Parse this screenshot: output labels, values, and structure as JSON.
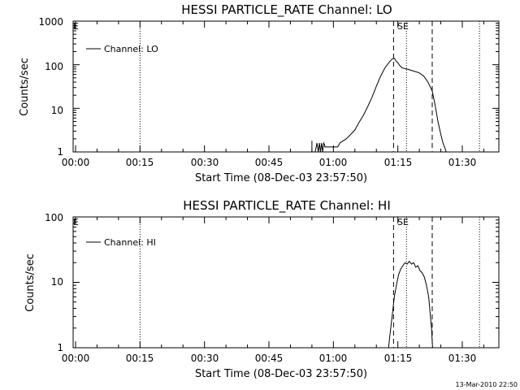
{
  "chart_data": [
    {
      "type": "line",
      "title": "HESSI PARTICLE_RATE Channel: LO",
      "xlabel": "Start Time (08-Dec-03 23:57:50)",
      "ylabel": "Counts/sec",
      "y_scale": "log",
      "ylim": [
        1,
        1000
      ],
      "x_ticks": [
        "00:00",
        "00:15",
        "00:30",
        "00:45",
        "01:00",
        "01:15",
        "01:30"
      ],
      "y_ticks": [
        "1",
        "10",
        "100",
        "1000"
      ],
      "corner_label": "E",
      "legend": {
        "position": "top-left",
        "entries": [
          "Channel: LO"
        ]
      },
      "markers": {
        "dotted": [
          "00:15",
          "01:17",
          "01:34"
        ],
        "dashed": [
          "01:14",
          "01:23"
        ],
        "label": "SE",
        "label_at": "01:15"
      },
      "series": [
        {
          "name": "Channel: LO",
          "x": [
            "00:55:00",
            "00:55:00",
            "00:55:45",
            "00:56:10",
            "00:56:30",
            "00:56:45",
            "00:57:00",
            "00:57:15",
            "00:57:30",
            "00:57:45",
            "00:58:00",
            "00:58:00",
            "01:01:00",
            "01:01:30",
            "01:03:00",
            "01:04:00",
            "01:05:00",
            "01:06:00",
            "01:07:00",
            "01:08:00",
            "01:09:00",
            "01:10:00",
            "01:11:00",
            "01:12:00",
            "01:13:00",
            "01:13:40",
            "01:14:10",
            "01:14:30",
            "01:15:00",
            "01:15:30",
            "01:16:00",
            "01:16:30",
            "01:17:00",
            "01:17:30",
            "01:18:00",
            "01:19:00",
            "01:20:00",
            "01:21:00",
            "01:22:00",
            "01:23:00",
            "01:23:40",
            "01:24:20",
            "01:25:00",
            "01:25:30",
            "01:26:00",
            "01:26:15"
          ],
          "y": [
            1.8,
            1,
            1,
            1.6,
            1,
            1.6,
            1,
            1.6,
            1,
            1.6,
            1.4,
            1.3,
            1.3,
            1.6,
            2,
            2.5,
            3.2,
            4.8,
            7,
            11,
            18,
            32,
            55,
            85,
            115,
            135,
            140,
            125,
            110,
            95,
            85,
            82,
            80,
            78,
            75,
            70,
            65,
            55,
            40,
            25,
            12,
            5,
            2.5,
            1.6,
            1.2,
            1
          ]
        }
      ]
    },
    {
      "type": "line",
      "title": "HESSI PARTICLE_RATE Channel: HI",
      "xlabel": "Start Time (08-Dec-03 23:57:50)",
      "ylabel": "Counts/sec",
      "y_scale": "log",
      "ylim": [
        1,
        100
      ],
      "x_ticks": [
        "00:00",
        "00:15",
        "00:30",
        "00:45",
        "01:00",
        "01:15",
        "01:30"
      ],
      "y_ticks": [
        "1",
        "10",
        "100"
      ],
      "corner_label": "E",
      "legend": {
        "position": "top-left",
        "entries": [
          "Channel: HI"
        ]
      },
      "markers": {
        "dotted": [
          "00:15",
          "01:17",
          "01:34"
        ],
        "dashed": [
          "01:14",
          "01:23"
        ],
        "label": "SE",
        "label_at": "01:15"
      },
      "series": [
        {
          "name": "Channel: HI",
          "x": [
            "01:12:50",
            "01:13:10",
            "01:13:40",
            "01:14:10",
            "01:14:40",
            "01:15:10",
            "01:15:40",
            "01:16:10",
            "01:16:40",
            "01:17:10",
            "01:17:40",
            "01:18:10",
            "01:18:40",
            "01:19:10",
            "01:19:40",
            "01:20:10",
            "01:20:40",
            "01:21:10",
            "01:21:40",
            "01:22:10",
            "01:22:30",
            "01:22:50",
            "01:23:05"
          ],
          "y": [
            1,
            1.6,
            3,
            6,
            9,
            13,
            16,
            18,
            20,
            19,
            21,
            19,
            20,
            17,
            18,
            15,
            14,
            12,
            9,
            6,
            3.5,
            2,
            1
          ]
        }
      ]
    }
  ],
  "timestamp": "13-Mar-2010 22:50"
}
